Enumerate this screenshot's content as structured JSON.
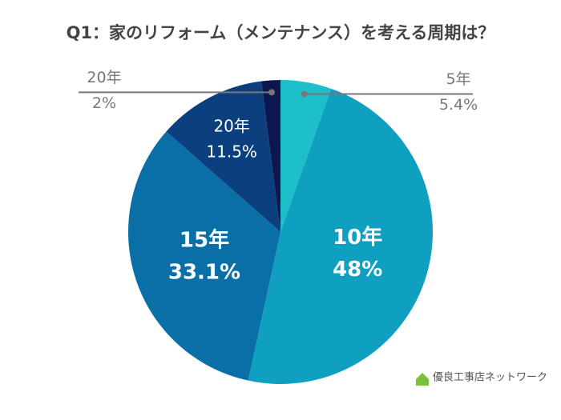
{
  "chart_data": {
    "type": "pie",
    "title": "Q1：家のリフォーム（メンテナンス）を考える周期は？",
    "categories": [
      "5年",
      "10年",
      "15年",
      "20年",
      "20年"
    ],
    "values": [
      5.4,
      48,
      33.1,
      11.5,
      2
    ],
    "value_labels": [
      "5.4%",
      "48%",
      "33.1%",
      "11.5%",
      "2%"
    ],
    "colors": [
      "#1dbfcb",
      "#0f9fc1",
      "#0b6fa7",
      "#0b3f7e",
      "#0c174f"
    ]
  },
  "logo": "優良工事店ネットワーク"
}
